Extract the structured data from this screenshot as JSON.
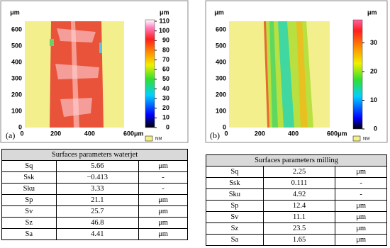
{
  "panels": [
    {
      "label": "(a)",
      "y_unit": "μm",
      "x_ticks": [
        "0",
        "200",
        "400",
        "600μm"
      ],
      "y_ticks": [
        "0",
        "100",
        "200",
        "300",
        "400",
        "500",
        "600"
      ],
      "colorbar_unit": "μm",
      "colorbar_ticks": [
        "0",
        "10",
        "20",
        "30",
        "40",
        "50",
        "60",
        "70",
        "80",
        "90",
        "100",
        "110"
      ],
      "nm_label": "NM",
      "table": {
        "title": "Surfaces parameters waterjet",
        "rows": [
          [
            "Sq",
            "5.66",
            "μm"
          ],
          [
            "Ssk",
            "−0.413",
            "-"
          ],
          [
            "Sku",
            "3.33",
            "-"
          ],
          [
            "Sp",
            "21.1",
            "μm"
          ],
          [
            "Sv",
            "25.7",
            "μm"
          ],
          [
            "Sz",
            "46.8",
            "μm"
          ],
          [
            "Sa",
            "4.41",
            "μm"
          ]
        ]
      }
    },
    {
      "label": "(b)",
      "y_unit": "μm",
      "x_ticks": [
        "0",
        "200",
        "400",
        "600μm"
      ],
      "y_ticks": [
        "0",
        "100",
        "200",
        "300",
        "400",
        "500",
        "600"
      ],
      "colorbar_unit": "μm",
      "colorbar_ticks": [
        "0",
        "10",
        "20",
        "30"
      ],
      "nm_label": "NM",
      "table": {
        "title": "Surfaces parameters milling",
        "rows": [
          [
            "Sq",
            "2.25",
            "μm"
          ],
          [
            "Ssk",
            "0.111",
            "-"
          ],
          [
            "Sku",
            "4.92",
            "-"
          ],
          [
            "Sp",
            "12.4",
            "μm"
          ],
          [
            "Sv",
            "11.1",
            "μm"
          ],
          [
            "Sz",
            "23.5",
            "μm"
          ],
          [
            "Sa",
            "1.65",
            "μm"
          ]
        ]
      }
    }
  ]
}
